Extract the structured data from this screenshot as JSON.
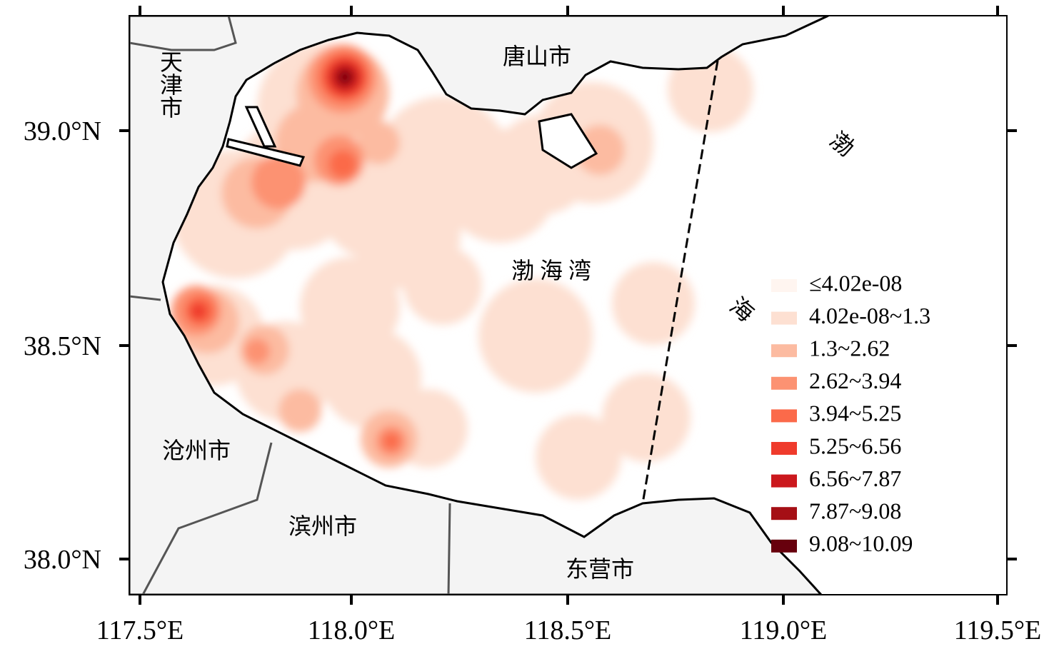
{
  "map": {
    "x_ticks": [
      "117.5°E",
      "118.0°E",
      "118.5°E",
      "119.0°E",
      "119.5°E"
    ],
    "y_ticks": [
      "39.0°N",
      "38.5°N",
      "38.0°N"
    ],
    "places": {
      "tianjin": "天津市",
      "tangshan": "唐山市",
      "cangzhou": "沧州市",
      "binzhou": "滨州市",
      "dongying": "东营市",
      "bohai_bay": "渤 海 湾"
    },
    "bohai_sea": [
      "渤",
      "海"
    ],
    "legend": [
      {
        "label": "≤4.02e-08",
        "color": "#fff5f0"
      },
      {
        "label": "4.02e-08~1.3",
        "color": "#fde0d2"
      },
      {
        "label": "1.3~2.62",
        "color": "#fcbba1"
      },
      {
        "label": "2.62~3.94",
        "color": "#fc9272"
      },
      {
        "label": "3.94~5.25",
        "color": "#fb6a4a"
      },
      {
        "label": "5.25~6.56",
        "color": "#ef3b2c"
      },
      {
        "label": "6.56~7.87",
        "color": "#cb181d"
      },
      {
        "label": "7.87~9.08",
        "color": "#a50f15"
      },
      {
        "label": "9.08~10.09",
        "color": "#67000d"
      }
    ]
  }
}
